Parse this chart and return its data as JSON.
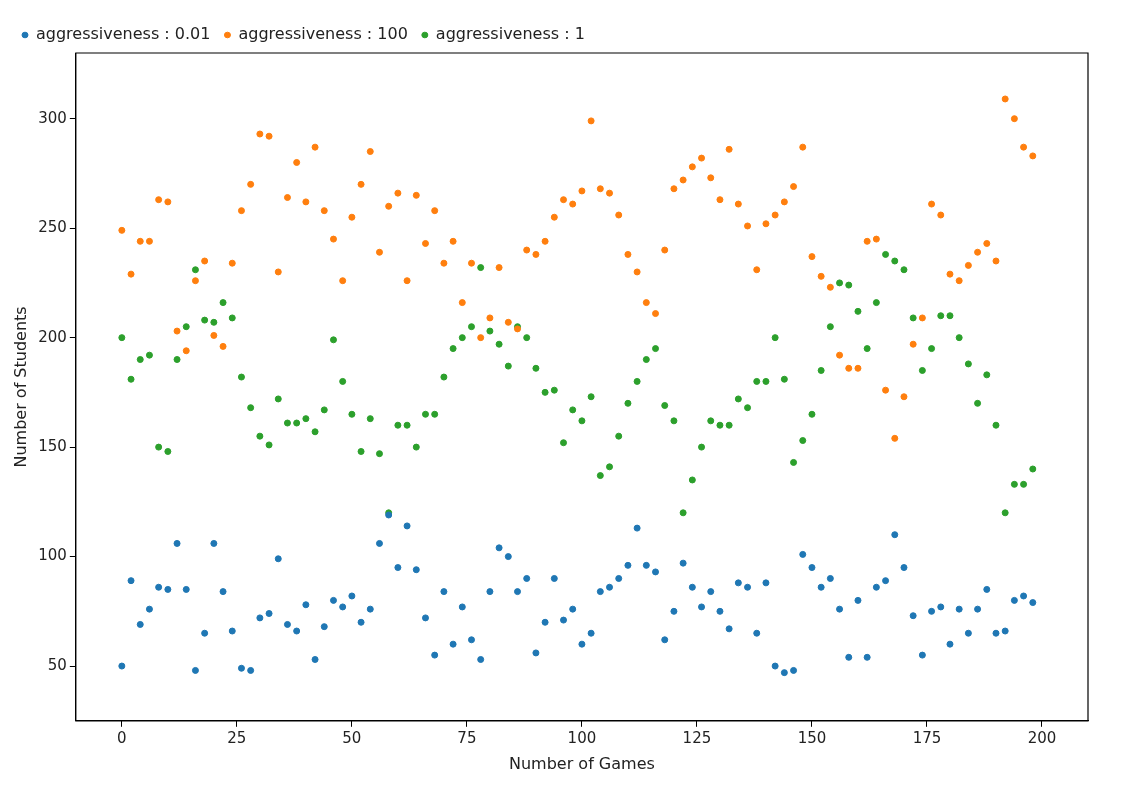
{
  "chart_data": {
    "type": "scatter",
    "xlabel": "Number of Games",
    "ylabel": "Number of Students",
    "x": [
      0,
      2,
      4,
      6,
      8,
      10,
      12,
      14,
      16,
      18,
      20,
      22,
      24,
      26,
      28,
      30,
      32,
      34,
      36,
      38,
      40,
      42,
      44,
      46,
      48,
      50,
      52,
      54,
      56,
      58,
      60,
      62,
      64,
      66,
      68,
      70,
      72,
      74,
      76,
      78,
      80,
      82,
      84,
      86,
      88,
      90,
      92,
      94,
      96,
      98,
      100,
      102,
      104,
      106,
      108,
      110,
      112,
      114,
      116,
      118,
      120,
      122,
      124,
      126,
      128,
      130,
      132,
      134,
      136,
      138,
      140,
      142,
      144,
      146,
      148,
      150,
      152,
      154,
      156,
      158,
      160,
      162,
      164,
      166,
      168,
      170,
      172,
      174,
      176,
      178,
      180,
      182,
      184,
      186,
      188,
      190,
      192,
      194,
      196,
      198
    ],
    "series": [
      {
        "name": "aggressiveness : 0.01",
        "color": "#1f77b4",
        "values": [
          50,
          89,
          69,
          76,
          86,
          85,
          106,
          85,
          48,
          65,
          106,
          84,
          66,
          49,
          48,
          72,
          74,
          99,
          69,
          66,
          78,
          53,
          68,
          80,
          77,
          82,
          70,
          76,
          106,
          119,
          95,
          114,
          94,
          72,
          55,
          84,
          60,
          77,
          62,
          53,
          84,
          104,
          100,
          84,
          90,
          56,
          70,
          90,
          71,
          76,
          60,
          65,
          84,
          86,
          90,
          96,
          113,
          96,
          93,
          62,
          75,
          97,
          86,
          77,
          84,
          75,
          67,
          88,
          86,
          65,
          88,
          50,
          47,
          48,
          101,
          95,
          86,
          90,
          76,
          54,
          80,
          54,
          86,
          89,
          110,
          95,
          73,
          55,
          75,
          77,
          60,
          76,
          65,
          76,
          85,
          65,
          66,
          80,
          82,
          79
        ]
      },
      {
        "name": "aggressiveness : 100",
        "color": "#ff7f0e",
        "values": [
          249,
          229,
          244,
          244,
          263,
          262,
          203,
          194,
          226,
          235,
          201,
          196,
          234,
          258,
          270,
          293,
          292,
          230,
          264,
          280,
          262,
          287,
          258,
          245,
          226,
          255,
          270,
          285,
          239,
          260,
          266,
          226,
          265,
          243,
          258,
          234,
          244,
          216,
          234,
          200,
          209,
          232,
          207,
          204,
          240,
          238,
          244,
          255,
          263,
          261,
          267,
          299,
          268,
          266,
          256,
          238,
          230,
          216,
          211,
          240,
          268,
          272,
          278,
          282,
          273,
          263,
          286,
          261,
          251,
          231,
          252,
          256,
          262,
          269,
          287,
          237,
          228,
          223,
          192,
          186,
          186,
          244,
          245,
          176,
          154,
          173,
          197,
          209,
          261,
          256,
          229,
          226,
          233,
          239,
          243,
          235,
          309,
          300,
          287,
          283
        ]
      },
      {
        "name": "aggressiveness : 1",
        "color": "#2ca02c",
        "values": [
          200,
          181,
          190,
          192,
          150,
          148,
          190,
          205,
          231,
          208,
          207,
          216,
          209,
          182,
          168,
          155,
          151,
          172,
          161,
          161,
          163,
          157,
          167,
          199,
          180,
          165,
          148,
          163,
          147,
          120,
          160,
          160,
          150,
          165,
          165,
          182,
          195,
          200,
          205,
          232,
          203,
          197,
          187,
          205,
          200,
          186,
          175,
          176,
          152,
          167,
          162,
          173,
          137,
          141,
          155,
          170,
          180,
          190,
          195,
          169,
          162,
          120,
          135,
          150,
          162,
          160,
          160,
          172,
          168,
          180,
          180,
          200,
          181,
          143,
          153,
          165,
          185,
          205,
          225,
          224,
          212,
          195,
          216,
          238,
          235,
          231,
          209,
          185,
          195,
          210,
          210,
          200,
          188,
          170,
          183,
          160,
          120,
          133,
          133,
          140
        ]
      }
    ],
    "xlim": [
      -10,
      210
    ],
    "xticks": [
      0,
      25,
      50,
      75,
      100,
      125,
      150,
      175,
      200
    ],
    "ylim": [
      25,
      330
    ],
    "yticks": [
      50,
      100,
      150,
      200,
      250,
      300
    ],
    "grid": false,
    "legend": "top left",
    "marker": "circle"
  }
}
